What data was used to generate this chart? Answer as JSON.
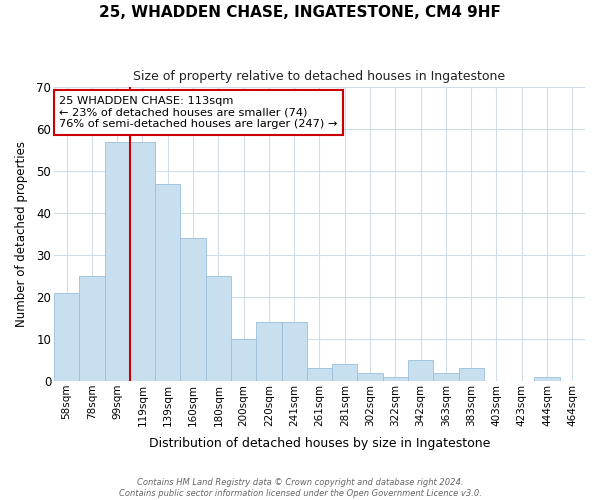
{
  "title": "25, WHADDEN CHASE, INGATESTONE, CM4 9HF",
  "subtitle": "Size of property relative to detached houses in Ingatestone",
  "xlabel": "Distribution of detached houses by size in Ingatestone",
  "ylabel": "Number of detached properties",
  "bin_labels": [
    "58sqm",
    "78sqm",
    "99sqm",
    "119sqm",
    "139sqm",
    "160sqm",
    "180sqm",
    "200sqm",
    "220sqm",
    "241sqm",
    "261sqm",
    "281sqm",
    "302sqm",
    "322sqm",
    "342sqm",
    "363sqm",
    "383sqm",
    "403sqm",
    "423sqm",
    "444sqm",
    "464sqm"
  ],
  "bar_heights": [
    21,
    25,
    57,
    57,
    47,
    34,
    25,
    10,
    14,
    14,
    3,
    4,
    2,
    1,
    5,
    2,
    3,
    0,
    0,
    1,
    0
  ],
  "bar_color": "#c8dff0",
  "bar_edge_color": "#9bbfd8",
  "vline_color": "#cc0000",
  "vline_x": 2.5,
  "ylim": [
    0,
    70
  ],
  "yticks": [
    0,
    10,
    20,
    30,
    40,
    50,
    60,
    70
  ],
  "annotation_line1": "25 WHADDEN CHASE: 113sqm",
  "annotation_line2": "← 23% of detached houses are smaller (74)",
  "annotation_line3": "76% of semi-detached houses are larger (247) →",
  "annotation_box_color": "#ffffff",
  "annotation_box_edge": "#cc0000",
  "footer_line1": "Contains HM Land Registry data © Crown copyright and database right 2024.",
  "footer_line2": "Contains public sector information licensed under the Open Government Licence v3.0.",
  "background_color": "#ffffff",
  "grid_color": "#d0dce8"
}
